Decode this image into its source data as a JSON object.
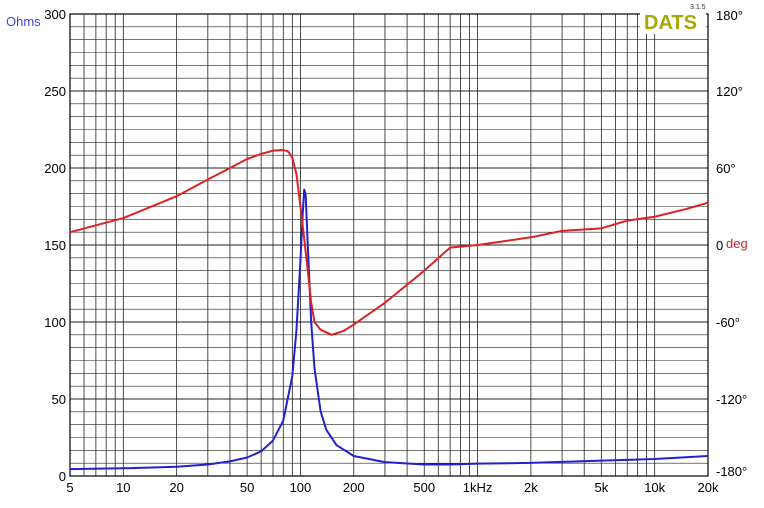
{
  "chart_data": {
    "type": "line",
    "x_scale": "log",
    "x_range": [
      5,
      20000
    ],
    "x_ticks": [
      {
        "value": 5,
        "label": "5"
      },
      {
        "value": 10,
        "label": "10"
      },
      {
        "value": 20,
        "label": "20"
      },
      {
        "value": 50,
        "label": "50"
      },
      {
        "value": 100,
        "label": "100"
      },
      {
        "value": 200,
        "label": "200"
      },
      {
        "value": 500,
        "label": "500"
      },
      {
        "value": 1000,
        "label": "1kHz"
      },
      {
        "value": 2000,
        "label": "2k"
      },
      {
        "value": 5000,
        "label": "5k"
      },
      {
        "value": 10000,
        "label": "10k"
      },
      {
        "value": 20000,
        "label": "20k"
      }
    ],
    "y_left": {
      "unit_label": "Ohms",
      "range": [
        0,
        300
      ],
      "ticks": [
        "0",
        "50",
        "100",
        "150",
        "200",
        "250",
        "300"
      ],
      "color": "#4444dd"
    },
    "y_right": {
      "unit_label": "deg",
      "range": [
        -180,
        180
      ],
      "ticks": [
        "-180°",
        "-120°",
        "-60°",
        "0",
        "60°",
        "120°",
        "180°"
      ],
      "color": "#cc2222"
    },
    "grid": true,
    "logo": {
      "text": "DATS",
      "version": "3.1.5",
      "color": "#a8a800"
    },
    "series": [
      {
        "axis": "left",
        "color": "#2222cc",
        "points": [
          [
            5,
            4.5
          ],
          [
            10,
            5
          ],
          [
            20,
            6
          ],
          [
            30,
            7.5
          ],
          [
            40,
            9.5
          ],
          [
            50,
            12
          ],
          [
            60,
            16
          ],
          [
            70,
            23
          ],
          [
            80,
            36
          ],
          [
            90,
            65
          ],
          [
            95,
            95
          ],
          [
            100,
            140
          ],
          [
            103,
            170
          ],
          [
            105,
            186
          ],
          [
            107,
            183
          ],
          [
            110,
            150
          ],
          [
            115,
            100
          ],
          [
            120,
            70
          ],
          [
            130,
            42
          ],
          [
            140,
            30
          ],
          [
            160,
            20
          ],
          [
            200,
            13
          ],
          [
            300,
            9
          ],
          [
            500,
            7.5
          ],
          [
            700,
            7.5
          ],
          [
            1000,
            8
          ],
          [
            2000,
            8.5
          ],
          [
            5000,
            10
          ],
          [
            10000,
            11
          ],
          [
            20000,
            13
          ]
        ]
      },
      {
        "axis": "right",
        "color": "#dd2222",
        "points": [
          [
            5,
            10
          ],
          [
            10,
            21
          ],
          [
            20,
            38
          ],
          [
            30,
            51
          ],
          [
            40,
            60
          ],
          [
            50,
            67
          ],
          [
            60,
            71
          ],
          [
            70,
            73.5
          ],
          [
            80,
            74
          ],
          [
            85,
            73
          ],
          [
            90,
            68
          ],
          [
            95,
            55
          ],
          [
            100,
            30
          ],
          [
            105,
            5
          ],
          [
            110,
            -20
          ],
          [
            115,
            -45
          ],
          [
            120,
            -60
          ],
          [
            130,
            -66
          ],
          [
            150,
            -70
          ],
          [
            175,
            -67
          ],
          [
            200,
            -62
          ],
          [
            300,
            -45
          ],
          [
            500,
            -20
          ],
          [
            700,
            -2
          ],
          [
            1000,
            0
          ],
          [
            2000,
            6
          ],
          [
            3000,
            11
          ],
          [
            5000,
            13
          ],
          [
            7000,
            19
          ],
          [
            10000,
            22
          ],
          [
            15000,
            28
          ],
          [
            20000,
            33
          ]
        ]
      }
    ]
  }
}
